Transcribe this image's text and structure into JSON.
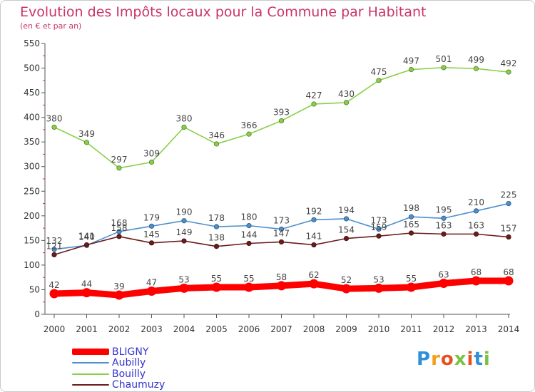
{
  "title": "Evolution des Impôts locaux pour la Commune par Habitant",
  "subtitle": "(en € et par an)",
  "logo_text": "Proxiti",
  "chart_data": {
    "type": "line",
    "x": [
      "2000",
      "2001",
      "2002",
      "2003",
      "2004",
      "2005",
      "2006",
      "2007",
      "2008",
      "2009",
      "2010",
      "2011",
      "2012",
      "2013",
      "2014"
    ],
    "ylim": [
      0,
      550
    ],
    "yticks": [
      0,
      50,
      100,
      150,
      200,
      250,
      300,
      350,
      400,
      450,
      500,
      550
    ],
    "grid": false,
    "legend_position": "bottom-left",
    "series": [
      {
        "name": "BLIGNY",
        "color": "#ff0000",
        "values": [
          42,
          44,
          39,
          47,
          53,
          55,
          55,
          58,
          62,
          52,
          53,
          55,
          63,
          68,
          68
        ]
      },
      {
        "name": "Aubilly",
        "color": "#4d8fcc",
        "values": [
          132,
          140,
          168,
          179,
          190,
          178,
          180,
          173,
          192,
          194,
          173,
          198,
          195,
          210,
          225
        ]
      },
      {
        "name": "Bouilly",
        "color": "#8acf4a",
        "values": [
          380,
          349,
          297,
          309,
          380,
          346,
          366,
          393,
          427,
          430,
          475,
          497,
          501,
          499,
          492
        ]
      },
      {
        "name": "Chaumuzy",
        "color": "#6b1c1c",
        "values": [
          121,
          141,
          158,
          145,
          149,
          138,
          144,
          147,
          141,
          154,
          159,
          165,
          163,
          163,
          157
        ]
      }
    ]
  }
}
